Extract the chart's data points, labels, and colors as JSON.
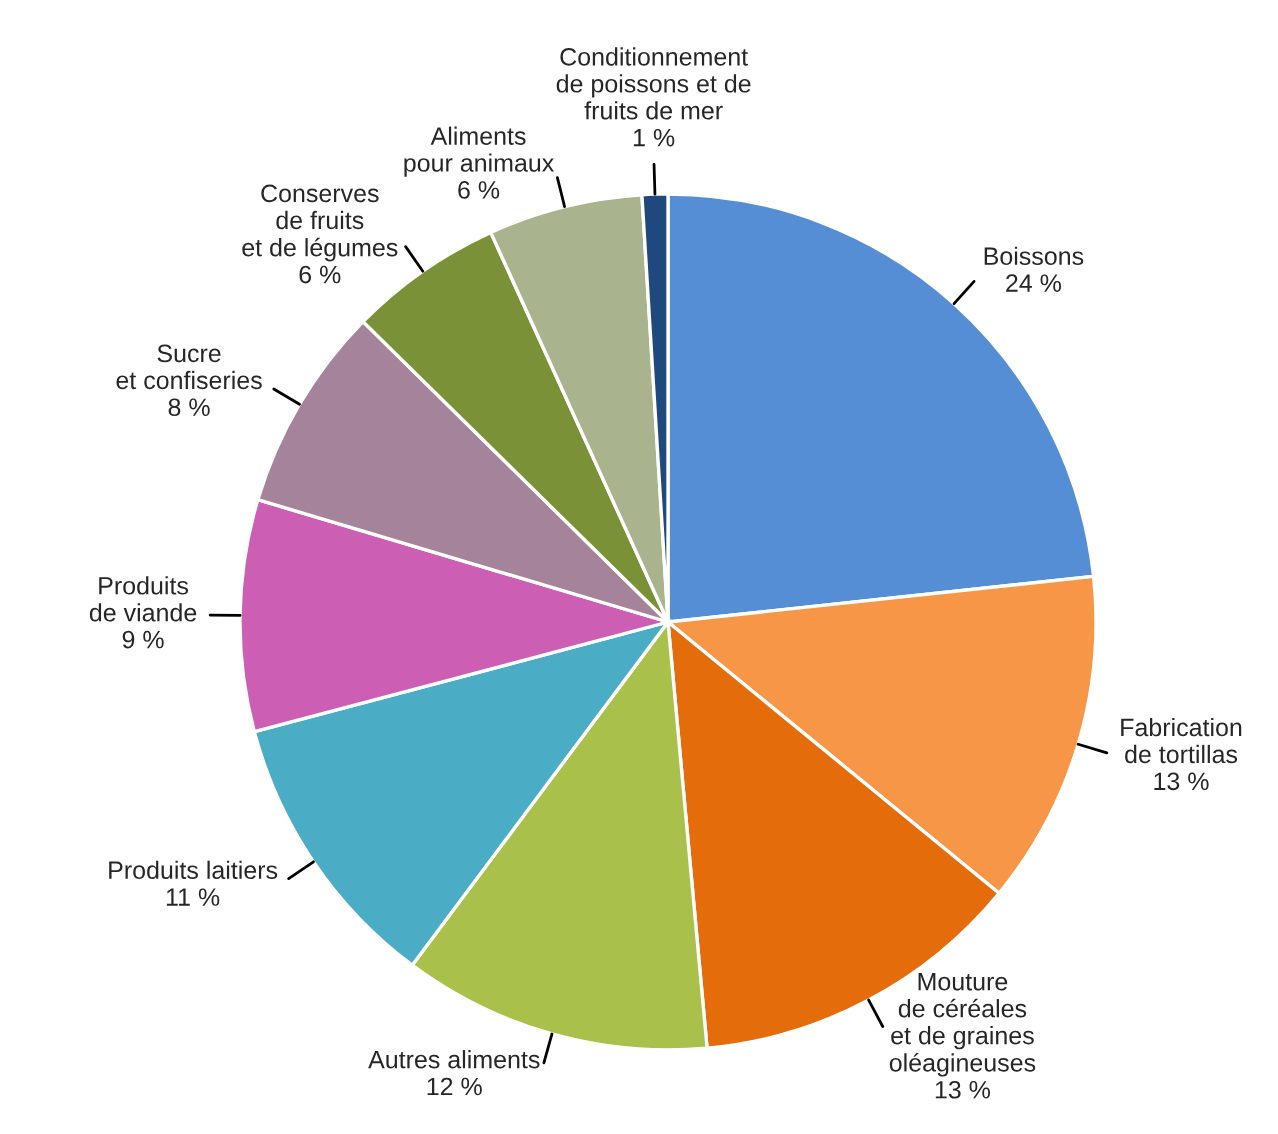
{
  "chart_data": {
    "type": "pie",
    "categories": [
      "Boissons",
      "Fabrication\nde tortillas",
      "Mouture\nde céréales\net de graines\noléagineuses",
      "Autres aliments",
      "Produits laitiers",
      "Produits\nde viande",
      "Sucre\net confiseries",
      "Conserves\nde fruits\net de légumes",
      "Aliments\npour animaux",
      "Conditionnement\nde poissons et de\nfruits de mer"
    ],
    "values": [
      24,
      13,
      13,
      12,
      11,
      9,
      8,
      6,
      6,
      1
    ],
    "value_labels": [
      "24 %",
      "13 %",
      "13 %",
      "12 %",
      "11 %",
      "9 %",
      "8 %",
      "6 %",
      "6 %",
      "1 %"
    ],
    "colors": [
      "#558ed5",
      "#f79646",
      "#e46c0a",
      "#a9c14a",
      "#4bacc6",
      "#cc5fb4",
      "#a5849b",
      "#7a9138",
      "#a9b48f",
      "#1f497d"
    ]
  }
}
